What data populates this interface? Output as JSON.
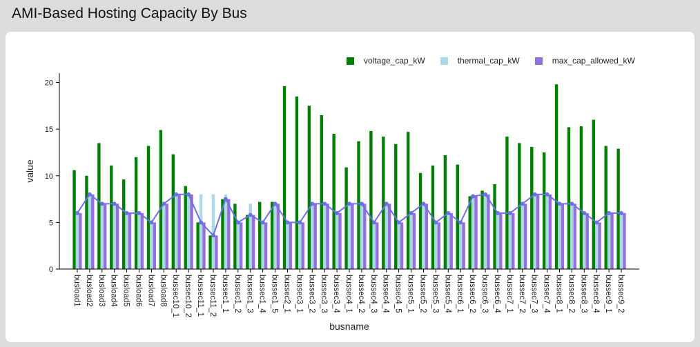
{
  "page": {
    "title": "AMI-Based Hosting Capacity By Bus"
  },
  "colors": {
    "voltage": "#008000",
    "thermal": "#add8e6",
    "max": "#9370db",
    "line": "#6f6fe8"
  },
  "legend": {
    "voltage_label": "voltage_cap_kW",
    "thermal_label": "thermal_cap_kW",
    "max_label": "max_cap_allowed_kW"
  },
  "chart_data": {
    "type": "bar",
    "xlabel": "busname",
    "ylabel": "value",
    "ylim": [
      0,
      21
    ],
    "yticks": [
      0,
      5,
      10,
      15,
      20
    ],
    "categories": [
      "busload1",
      "busload2",
      "busload3",
      "busload4",
      "busload5",
      "busload6",
      "busload7",
      "busload8",
      "bussec10_1",
      "bussec10_2",
      "bussec11_1",
      "bussec11_2",
      "bussec1_1",
      "bussec1_2",
      "bussec1_3",
      "bussec1_4",
      "bussec1_5",
      "bussec2_1",
      "bussec3_1",
      "bussec3_2",
      "bussec3_3",
      "bussec3_4",
      "bussec4_1",
      "bussec4_2",
      "bussec4_3",
      "bussec4_4",
      "bussec4_5",
      "bussec5_1",
      "bussec5_2",
      "bussec5_3",
      "bussec5_4",
      "bussec6_1",
      "bussec6_2",
      "bussec6_3",
      "bussec6_4",
      "bussec7_1",
      "bussec7_2",
      "bussec7_3",
      "bussec7_4",
      "bussec8_1",
      "bussec8_2",
      "bussec8_3",
      "bussec8_4",
      "bussec9_1",
      "bussec9_2"
    ],
    "series": [
      {
        "name": "voltage_cap_kW",
        "values": [
          10.6,
          10.0,
          13.5,
          11.1,
          9.6,
          12.0,
          13.2,
          14.9,
          12.3,
          8.9,
          5.0,
          3.6,
          7.5,
          7.0,
          5.8,
          7.2,
          7.2,
          19.6,
          18.5,
          17.5,
          16.5,
          14.5,
          10.9,
          13.7,
          14.8,
          14.2,
          13.4,
          14.7,
          10.3,
          11.1,
          12.2,
          11.2,
          7.8,
          8.4,
          9.1,
          14.2,
          13.5,
          13.1,
          12.5,
          19.8,
          15.2,
          15.3,
          16.0,
          13.2,
          12.9
        ]
      },
      {
        "name": "thermal_cap_kW",
        "values": [
          6.0,
          8.0,
          7.0,
          7.0,
          6.0,
          6.0,
          5.0,
          7.0,
          8.0,
          8.0,
          8.0,
          8.0,
          8.0,
          5.0,
          7.0,
          5.0,
          7.0,
          5.0,
          5.0,
          7.0,
          7.0,
          6.0,
          7.0,
          7.0,
          5.0,
          7.0,
          5.0,
          6.0,
          7.0,
          5.0,
          6.0,
          5.0,
          8.0,
          8.0,
          6.0,
          6.0,
          7.0,
          8.0,
          8.0,
          7.0,
          7.0,
          6.0,
          5.0,
          6.0,
          6.0
        ]
      },
      {
        "name": "max_cap_allowed_kW",
        "values": [
          6.0,
          8.0,
          7.0,
          7.0,
          6.0,
          6.0,
          5.0,
          7.0,
          8.0,
          8.0,
          5.0,
          3.6,
          7.5,
          5.0,
          5.8,
          5.0,
          7.0,
          5.0,
          5.0,
          7.0,
          7.0,
          6.0,
          7.0,
          7.0,
          5.0,
          7.0,
          5.0,
          6.0,
          7.0,
          5.0,
          6.0,
          5.0,
          7.8,
          8.0,
          6.0,
          6.0,
          7.0,
          8.0,
          8.0,
          7.0,
          7.0,
          6.0,
          5.0,
          6.0,
          6.0
        ]
      }
    ],
    "line": {
      "series": "max_cap_allowed_kW"
    }
  }
}
